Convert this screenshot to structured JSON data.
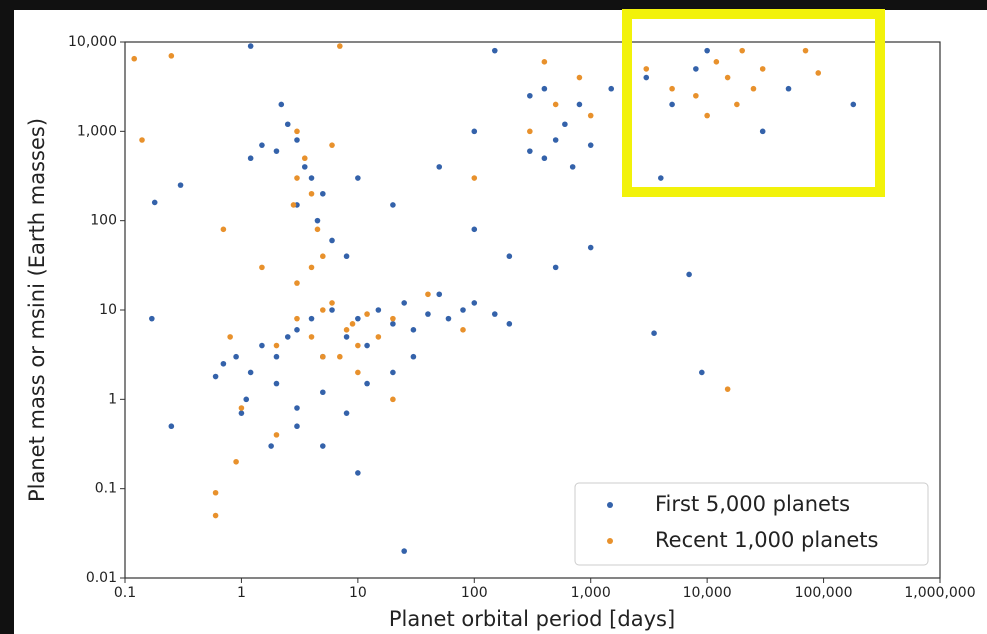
{
  "chart_data": {
    "type": "scatter",
    "x_label": "Planet orbital period [days]",
    "y_label": "Planet mass or msini (Earth masses)",
    "x_log": true,
    "y_log": true,
    "grid": false,
    "legend": "lower right",
    "xlim": [
      0.1,
      1000000
    ],
    "ylim": [
      0.01,
      10000
    ],
    "xticks": [
      0.1,
      1,
      10,
      100,
      {
        "value": 1000,
        "label": "1,000"
      },
      {
        "value": 10000,
        "label": "10,000"
      },
      {
        "value": 100000,
        "label": "100,000"
      },
      {
        "value": 1000000,
        "label": "1,000,000"
      }
    ],
    "yticks": [
      0.01,
      0.1,
      1,
      10,
      100,
      {
        "value": 1000,
        "label": "1,000"
      },
      {
        "value": 10000,
        "label": "10,000"
      }
    ],
    "series": [
      {
        "name": "First 5,000 planets",
        "color": "#3462aa",
        "x": [
          0.7,
          0.9,
          1.2,
          1.5,
          2,
          2.5,
          3,
          4,
          5,
          6,
          8,
          10,
          12,
          15,
          20,
          25,
          30,
          40,
          50,
          60,
          80,
          100,
          150,
          200,
          1.1,
          2,
          3,
          5,
          8,
          12,
          20,
          30,
          5,
          10,
          3,
          1,
          0.6,
          1.8,
          25,
          2,
          3,
          3.5,
          4,
          2.5,
          1.5,
          5,
          3,
          4.5,
          6,
          8,
          1.2,
          2.2,
          10,
          20,
          50,
          100,
          300,
          400,
          500,
          600,
          700,
          800,
          1000,
          1500,
          2000,
          400,
          300,
          3000,
          5000,
          8000,
          10000,
          4000,
          2000,
          50000,
          180000,
          30000,
          1000,
          500,
          200,
          100,
          0.18,
          0.3,
          0.17,
          0.25,
          9000,
          3500,
          7000,
          1.2,
          150
        ],
        "values": [
          2.5,
          3,
          2,
          4,
          3,
          5,
          6,
          8,
          3,
          10,
          5,
          8,
          4,
          10,
          7,
          12,
          6,
          9,
          15,
          8,
          10,
          12,
          9,
          7,
          1,
          1.5,
          0.8,
          1.2,
          0.7,
          1.5,
          2,
          3,
          0.3,
          0.15,
          0.5,
          0.7,
          1.8,
          0.3,
          0.02,
          600,
          800,
          400,
          300,
          1200,
          700,
          200,
          150,
          100,
          60,
          40,
          500,
          2000,
          300,
          150,
          400,
          1000,
          600,
          500,
          800,
          1200,
          400,
          2000,
          700,
          3000,
          1500,
          3000,
          2500,
          4000,
          2000,
          5000,
          8000,
          300,
          200,
          3000,
          2000,
          1000,
          50,
          30,
          40,
          80,
          160,
          250,
          8,
          0.5,
          2,
          5.5,
          25,
          9000,
          8000
        ]
      },
      {
        "name": "Recent 1,000 planets",
        "color": "#e8912c",
        "x": [
          0.12,
          0.14,
          0.25,
          0.6,
          0.6,
          0.9,
          2,
          3,
          4,
          5,
          6,
          8,
          9,
          10,
          12,
          15,
          20,
          5,
          7,
          3,
          4,
          3,
          4,
          3.5,
          2.8,
          4.5,
          5,
          3,
          6,
          10,
          20,
          40,
          80,
          100,
          300,
          500,
          800,
          1000,
          3000,
          5000,
          8000,
          12000,
          15000,
          20000,
          25000,
          30000,
          18000,
          70000,
          90000,
          10000,
          15000,
          1,
          1.5,
          0.7,
          2,
          0.8,
          7,
          400
        ],
        "values": [
          6500,
          800,
          7000,
          0.05,
          0.09,
          0.2,
          4,
          8,
          5,
          3,
          12,
          6,
          7,
          4,
          9,
          5,
          8,
          10,
          3,
          20,
          30,
          300,
          200,
          500,
          150,
          80,
          40,
          1000,
          700,
          2,
          1,
          15,
          6,
          300,
          1000,
          2000,
          4000,
          1500,
          5000,
          3000,
          2500,
          6000,
          4000,
          8000,
          3000,
          5000,
          2000,
          8000,
          4500,
          1500,
          1.3,
          0.8,
          30,
          80,
          0.4,
          5,
          9000,
          6000
        ]
      }
    ]
  }
}
